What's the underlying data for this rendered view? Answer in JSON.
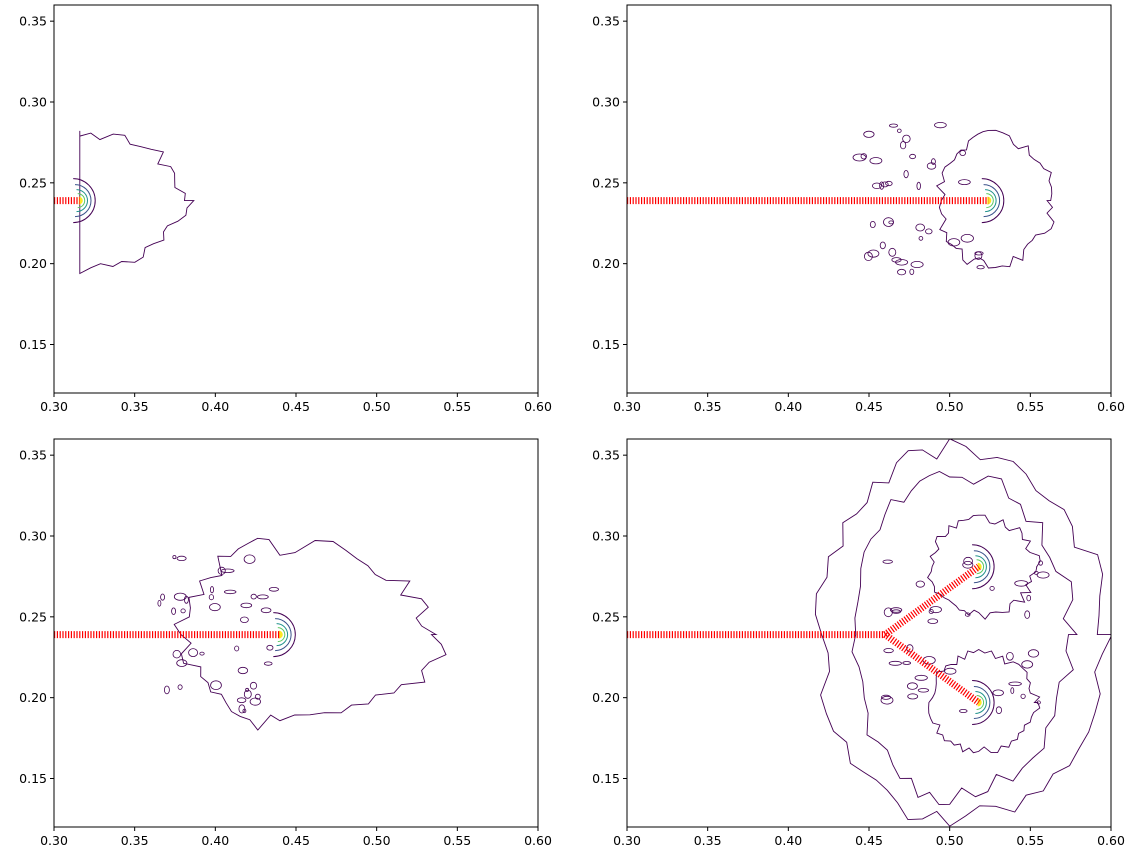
{
  "chart_data": [
    {
      "type": "contour",
      "panel": "top-left",
      "title": "",
      "xlabel": "",
      "ylabel": "",
      "xlim": [
        0.3,
        0.6
      ],
      "ylim": [
        0.12,
        0.36
      ],
      "x_ticks": [
        "0.30",
        "0.35",
        "0.40",
        "0.45",
        "0.50",
        "0.55",
        "0.60"
      ],
      "y_ticks": [
        "0.15",
        "0.20",
        "0.25",
        "0.30",
        "0.35"
      ],
      "grid": false,
      "crack_paths": [
        {
          "points": [
            [
              0.3,
              0.239
            ],
            [
              0.316,
              0.239
            ]
          ]
        }
      ],
      "crack_tips": [
        [
          0.316,
          0.239
        ]
      ],
      "contour_shapes": [
        {
          "cx": 0.316,
          "cy": 0.239,
          "back": 0.0,
          "front": 0.065,
          "halfheight": 0.042,
          "jitter": 0.004
        }
      ],
      "colors": {
        "crack": "#ff0000",
        "contours": [
          "#440154",
          "#3b528b",
          "#21918c",
          "#5ec962",
          "#fde725"
        ]
      }
    },
    {
      "type": "contour",
      "panel": "top-right",
      "title": "",
      "xlabel": "",
      "ylabel": "",
      "xlim": [
        0.3,
        0.6
      ],
      "ylim": [
        0.12,
        0.36
      ],
      "x_ticks": [
        "0.30",
        "0.35",
        "0.40",
        "0.45",
        "0.50",
        "0.55",
        "0.60"
      ],
      "y_ticks": [
        "0.15",
        "0.20",
        "0.25",
        "0.30",
        "0.35"
      ],
      "grid": false,
      "crack_paths": [
        {
          "points": [
            [
              0.3,
              0.239
            ],
            [
              0.524,
              0.239
            ]
          ]
        }
      ],
      "crack_tips": [
        [
          0.524,
          0.239
        ]
      ],
      "contour_shapes": [
        {
          "cx": 0.524,
          "cy": 0.239,
          "back": 0.03,
          "front": 0.04,
          "halfheight": 0.04,
          "jitter": 0.004
        }
      ],
      "scatter_blobs_x": [
        0.44,
        0.52
      ],
      "colors": {
        "crack": "#ff0000",
        "contours": [
          "#440154",
          "#3b528b",
          "#21918c",
          "#5ec962",
          "#fde725"
        ]
      }
    },
    {
      "type": "contour",
      "panel": "bottom-left",
      "title": "",
      "xlabel": "",
      "ylabel": "",
      "xlim": [
        0.3,
        0.6
      ],
      "ylim": [
        0.12,
        0.36
      ],
      "x_ticks": [
        "0.30",
        "0.35",
        "0.40",
        "0.45",
        "0.50",
        "0.55",
        "0.60"
      ],
      "y_ticks": [
        "0.15",
        "0.20",
        "0.25",
        "0.30",
        "0.35"
      ],
      "grid": false,
      "crack_paths": [
        {
          "points": [
            [
              0.3,
              0.239
            ],
            [
              0.44,
              0.239
            ]
          ]
        }
      ],
      "crack_tips": [
        [
          0.44,
          0.239
        ]
      ],
      "contour_shapes": [
        {
          "cx": 0.44,
          "cy": 0.239,
          "back": 0.06,
          "front": 0.097,
          "halfheight": 0.055,
          "jitter": 0.006
        }
      ],
      "scatter_blobs_x": [
        0.36,
        0.44
      ],
      "colors": {
        "crack": "#ff0000",
        "contours": [
          "#440154",
          "#3b528b",
          "#21918c",
          "#5ec962",
          "#fde725"
        ]
      }
    },
    {
      "type": "contour",
      "panel": "bottom-right",
      "title": "",
      "xlabel": "",
      "ylabel": "",
      "xlim": [
        0.3,
        0.6
      ],
      "ylim": [
        0.12,
        0.36
      ],
      "x_ticks": [
        "0.30",
        "0.35",
        "0.40",
        "0.45",
        "0.50",
        "0.55",
        "0.60"
      ],
      "y_ticks": [
        "0.15",
        "0.20",
        "0.25",
        "0.30",
        "0.35"
      ],
      "grid": false,
      "crack_paths": [
        {
          "points": [
            [
              0.3,
              0.239
            ],
            [
              0.46,
              0.239
            ]
          ]
        },
        {
          "points": [
            [
              0.46,
              0.239
            ],
            [
              0.518,
              0.281
            ]
          ]
        },
        {
          "points": [
            [
              0.46,
              0.239
            ],
            [
              0.518,
              0.197
            ]
          ]
        }
      ],
      "crack_tips": [
        [
          0.518,
          0.281
        ],
        [
          0.518,
          0.197
        ]
      ],
      "contour_shapes": [
        {
          "cx": 0.518,
          "cy": 0.281,
          "back": 0.03,
          "front": 0.035,
          "halfheight": 0.03,
          "jitter": 0.003
        },
        {
          "cx": 0.518,
          "cy": 0.197,
          "back": 0.03,
          "front": 0.035,
          "halfheight": 0.03,
          "jitter": 0.003
        },
        {
          "cx": 0.5,
          "cy": 0.239,
          "back": 0.06,
          "front": 0.075,
          "halfheight": 0.1,
          "jitter": 0.006
        },
        {
          "cx": 0.5,
          "cy": 0.239,
          "back": 0.08,
          "front": 0.095,
          "halfheight": 0.115,
          "jitter": 0.007
        }
      ],
      "scatter_blobs_x": [
        0.46,
        0.56
      ],
      "colors": {
        "crack": "#ff0000",
        "contours": [
          "#440154",
          "#3b528b",
          "#21918c",
          "#5ec962",
          "#fde725"
        ]
      }
    }
  ]
}
